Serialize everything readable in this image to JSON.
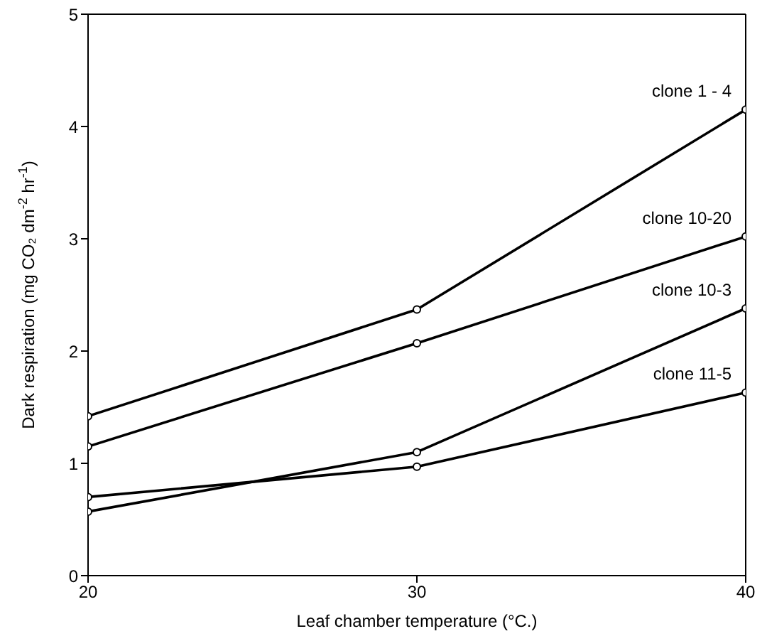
{
  "chart_data": {
    "type": "line",
    "xlabel": "Leaf chamber temperature (°C.)",
    "ylabel": "Dark respiration (mg CO₂ dm$^{-2}$ hr$^{-1}$)",
    "x": [
      20,
      30,
      40
    ],
    "xlim": [
      20,
      40
    ],
    "xticks": [
      20,
      30,
      40
    ],
    "ylim": [
      0,
      5
    ],
    "yticks": [
      0,
      1,
      2,
      3,
      4,
      5
    ],
    "marker": "circle",
    "grid": false,
    "legend": false,
    "series": [
      {
        "name": "clone 1 - 4",
        "color": "#000000",
        "values": [
          1.42,
          2.37,
          4.15
        ]
      },
      {
        "name": "clone 10-20",
        "color": "#000000",
        "values": [
          1.15,
          2.07,
          3.02
        ]
      },
      {
        "name": "clone 10-3",
        "color": "#000000",
        "values": [
          0.57,
          1.1,
          2.38
        ]
      },
      {
        "name": "clone 11-5",
        "color": "#000000",
        "values": [
          0.7,
          0.97,
          1.63
        ]
      }
    ]
  }
}
